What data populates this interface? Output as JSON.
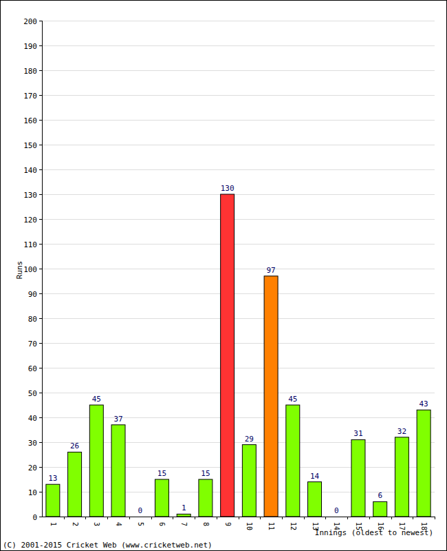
{
  "chart_data": {
    "type": "bar",
    "x_label": "Innings (oldest to newest)",
    "y_label": "Runs",
    "annotation": "(C) 2001-2015 Cricket Web (www.cricketweb.net)",
    "categories": [
      "1",
      "2",
      "3",
      "4",
      "5",
      "6",
      "7",
      "8",
      "9",
      "10",
      "11",
      "12",
      "13",
      "14",
      "15",
      "16",
      "17",
      "18"
    ],
    "values": [
      13,
      26,
      45,
      37,
      0,
      15,
      1,
      15,
      130,
      29,
      97,
      45,
      14,
      0,
      31,
      6,
      32,
      43
    ],
    "colors": [
      "#80ff00",
      "#80ff00",
      "#80ff00",
      "#80ff00",
      "#80ff00",
      "#80ff00",
      "#80ff00",
      "#80ff00",
      "#ff3333",
      "#80ff00",
      "#ff8000",
      "#80ff00",
      "#80ff00",
      "#80ff00",
      "#80ff00",
      "#80ff00",
      "#80ff00",
      "#80ff00"
    ],
    "ylim": [
      0,
      200
    ],
    "yticks": [
      0,
      10,
      20,
      30,
      40,
      50,
      60,
      70,
      80,
      90,
      100,
      110,
      120,
      130,
      140,
      150,
      160,
      170,
      180,
      190,
      200
    ],
    "grid": true,
    "data_labels": true
  }
}
